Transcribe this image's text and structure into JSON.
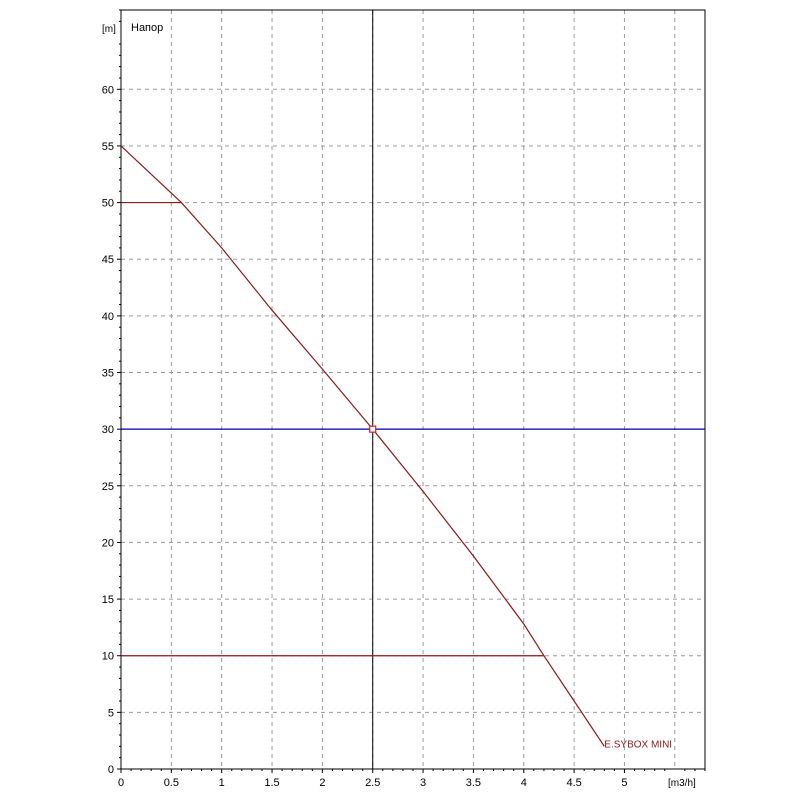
{
  "chart_data": {
    "type": "line",
    "title": "Напор",
    "ylabel": "[m]",
    "xlabel": "[m3/h]",
    "xlim": [
      0,
      5.8
    ],
    "ylim": [
      0,
      67
    ],
    "grid": true,
    "x_ticks": [
      "0",
      "0.5",
      "1",
      "1.5",
      "2",
      "2.5",
      "3",
      "3.5",
      "4",
      "4.5",
      "5"
    ],
    "x_tick_values": [
      0,
      0.5,
      1,
      1.5,
      2,
      2.5,
      3,
      3.5,
      4,
      4.5,
      5
    ],
    "y_ticks": [
      "0",
      "5",
      "10",
      "15",
      "20",
      "25",
      "30",
      "35",
      "40",
      "45",
      "50",
      "55",
      "60"
    ],
    "y_tick_values": [
      0,
      5,
      10,
      15,
      20,
      25,
      30,
      35,
      40,
      45,
      50,
      55,
      60
    ],
    "series": [
      {
        "name": "E.SYBOX MINI",
        "color": "#8b1a1a",
        "x": [
          0,
          0.6,
          1.0,
          1.5,
          2.0,
          2.5,
          3.0,
          3.5,
          4.0,
          4.2,
          4.5,
          4.8
        ],
        "y": [
          55,
          50,
          46,
          40.5,
          35.3,
          30,
          24.5,
          18.8,
          12.8,
          10,
          6,
          2
        ]
      }
    ],
    "reference_lines": [
      {
        "orientation": "vertical",
        "value": 2.5,
        "color": "#000000"
      },
      {
        "orientation": "horizontal",
        "value": 30,
        "color": "#0000aa"
      },
      {
        "orientation": "horizontal",
        "value": 50,
        "x_end": 0.6,
        "color": "#8b1a1a"
      },
      {
        "orientation": "horizontal",
        "value": 10,
        "x_end": 4.2,
        "color": "#8b1a1a"
      }
    ],
    "marker": {
      "x": 2.5,
      "y": 30,
      "color": "#cc2222"
    }
  }
}
